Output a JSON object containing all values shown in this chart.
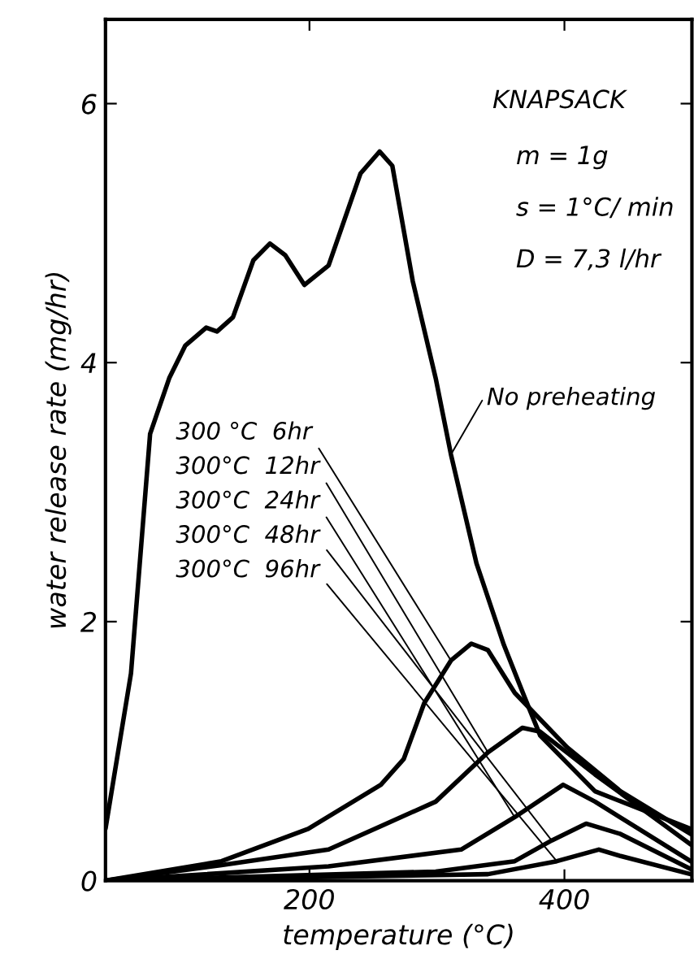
{
  "chart_data": {
    "type": "line",
    "xlabel": "temperature (°C)",
    "ylabel": "water release rate (mg/hr)",
    "xlim": [
      40,
      500
    ],
    "ylim": [
      0,
      6.65
    ],
    "xticks": [
      200,
      400
    ],
    "yticks": [
      0,
      2,
      4,
      6
    ],
    "grid": false,
    "legend": false,
    "marker": "none",
    "line_style": "solid",
    "annotations": [
      "KNAPSACK",
      "m = 1g",
      "s = 1°C/ min",
      "D = 7,3 l/hr"
    ],
    "series": [
      {
        "name": "No preheating",
        "color": "#000000",
        "x": [
          40,
          60,
          75,
          90,
          102.5,
          119,
          127.5,
          140,
          156,
          169,
          181,
          196,
          215,
          240,
          255,
          265,
          281,
          299,
          311,
          331,
          352.5,
          369,
          381,
          424,
          499
        ],
        "values": [
          0.4,
          1.6,
          3.45,
          3.88,
          4.13,
          4.27,
          4.24,
          4.35,
          4.79,
          4.92,
          4.83,
          4.6,
          4.75,
          5.46,
          5.63,
          5.52,
          4.63,
          3.88,
          3.29,
          2.45,
          1.82,
          1.41,
          1.12,
          0.69,
          0.4
        ]
      },
      {
        "name": "300 °C  6hr",
        "color": "#000000",
        "x": [
          40,
          131,
          199,
          256,
          274,
          290,
          311,
          327,
          340,
          361,
          402,
          444,
          499
        ],
        "values": [
          0,
          0.15,
          0.4,
          0.74,
          0.94,
          1.37,
          1.7,
          1.83,
          1.78,
          1.45,
          1.03,
          0.69,
          0.36
        ]
      },
      {
        "name": "300°C  12hr",
        "color": "#000000",
        "x": [
          40,
          131,
          215,
          299,
          340,
          367,
          381,
          424,
          499
        ],
        "values": [
          0,
          0.12,
          0.24,
          0.61,
          0.99,
          1.18,
          1.15,
          0.82,
          0.28
        ]
      },
      {
        "name": "300°C  24hr",
        "color": "#000000",
        "x": [
          40,
          215,
          319,
          361,
          399,
          424,
          499
        ],
        "values": [
          0,
          0.11,
          0.24,
          0.49,
          0.74,
          0.61,
          0.15
        ]
      },
      {
        "name": "300°C  48hr",
        "color": "#000000",
        "x": [
          40,
          299,
          361,
          390,
          417,
          444,
          499
        ],
        "values": [
          0,
          0.07,
          0.15,
          0.31,
          0.44,
          0.36,
          0.09
        ]
      },
      {
        "name": "300°C  96hr",
        "color": "#000000",
        "x": [
          40,
          340,
          394,
          427,
          444,
          499
        ],
        "values": [
          0,
          0.05,
          0.15,
          0.24,
          0.19,
          0.05
        ]
      }
    ]
  }
}
